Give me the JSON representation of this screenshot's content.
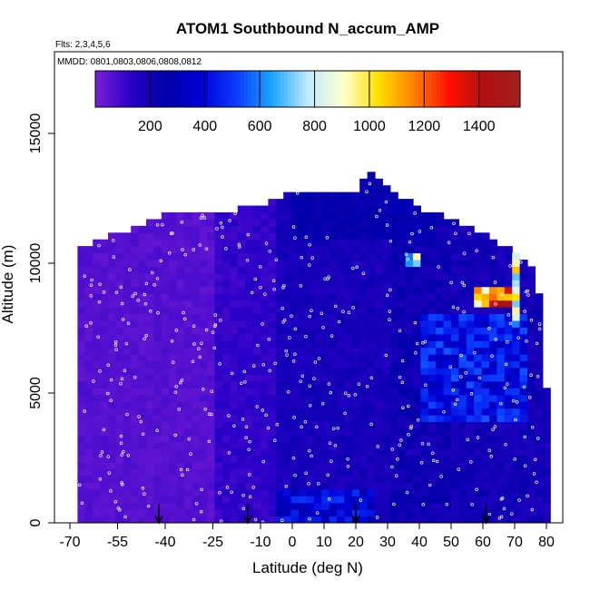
{
  "chart_data": {
    "type": "heatmap",
    "title": "ATOM1 Southbound N_accum_AMP",
    "flights_note": "Flts: 2,3,4,5,6",
    "dates_note": "MMDD: 0801,0803,0806,0808,0812",
    "xlabel": "Latitude (deg N)",
    "ylabel": "Altitude (m)",
    "xlim": [
      -70,
      85
    ],
    "ylim": [
      0,
      17500
    ],
    "x_ticks": [
      -70,
      -55,
      -40,
      -25,
      -10,
      0,
      10,
      20,
      30,
      40,
      50,
      60,
      70,
      80
    ],
    "y_ticks": [
      0,
      5000,
      10000,
      15000
    ],
    "colorbar": {
      "range": [
        0,
        1550
      ],
      "ticks": [
        200,
        400,
        600,
        800,
        1000,
        1200,
        1400
      ],
      "colors": [
        "#7b1fd6",
        "#2a00c8",
        "#0000a8",
        "#0000d8",
        "#0d3cff",
        "#19a6ff",
        "#bfe9ff",
        "#ffffd0",
        "#ffe000",
        "#ff8000",
        "#ff1000",
        "#b01010",
        "#a02020"
      ]
    },
    "profile_arrows_lat": [
      -42,
      -14,
      20,
      61
    ],
    "ceiling_profile": [
      {
        "lat": -67,
        "alt": 10400
      },
      {
        "lat": -60,
        "alt": 10800
      },
      {
        "lat": -50,
        "alt": 11200
      },
      {
        "lat": -40,
        "alt": 11800
      },
      {
        "lat": -30,
        "alt": 11900
      },
      {
        "lat": -20,
        "alt": 11900
      },
      {
        "lat": -10,
        "alt": 12100
      },
      {
        "lat": 0,
        "alt": 12700
      },
      {
        "lat": 10,
        "alt": 12700
      },
      {
        "lat": 20,
        "alt": 12700
      },
      {
        "lat": 25,
        "alt": 13400
      },
      {
        "lat": 30,
        "alt": 12700
      },
      {
        "lat": 40,
        "alt": 12000
      },
      {
        "lat": 50,
        "alt": 11600
      },
      {
        "lat": 60,
        "alt": 11000
      },
      {
        "lat": 70,
        "alt": 10300
      },
      {
        "lat": 77,
        "alt": 9500
      },
      {
        "lat": 80,
        "alt": 5000
      }
    ],
    "high_value_regions": [
      {
        "lat_range": [
          57,
          68
        ],
        "alt_range": [
          8200,
          9000
        ],
        "value": 1450
      },
      {
        "lat_range": [
          68,
          72
        ],
        "alt_range": [
          7500,
          11000
        ],
        "value": 1100
      },
      {
        "lat_range": [
          35,
          40
        ],
        "alt_range": [
          10000,
          10500
        ],
        "value": 1000
      },
      {
        "lat_range": [
          40,
          75
        ],
        "alt_range": [
          4000,
          8000
        ],
        "value": 550
      },
      {
        "lat_range": [
          -5,
          25
        ],
        "alt_range": [
          0,
          1200
        ],
        "value": 500
      }
    ]
  }
}
